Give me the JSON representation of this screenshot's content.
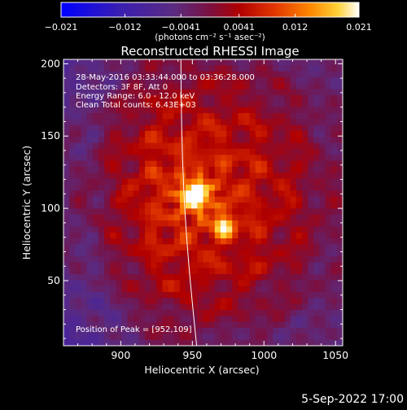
{
  "chart_data": {
    "type": "heatmap",
    "title": "Reconstructed RHESSI Image",
    "xlabel": "Heliocentric X (arcsec)",
    "ylabel": "Heliocentric Y (arcsec)",
    "xlim": [
      860,
      1055
    ],
    "ylim": [
      5,
      203
    ],
    "x_ticks": [
      900,
      950,
      1000,
      1050
    ],
    "y_ticks": [
      50,
      100,
      150,
      200
    ],
    "colorbar": {
      "range": [
        -0.021,
        0.021
      ],
      "tick_values": [
        -0.021,
        -0.012,
        -0.0041,
        0.0041,
        0.012,
        0.021
      ],
      "tick_labels": [
        "−0.021",
        "−0.012",
        "−0.0041",
        "0.0041",
        "0.012",
        "0.021"
      ],
      "unit_label": "(photons cm⁻² s⁻¹ asec⁻²)"
    },
    "peak": {
      "x": 952,
      "y": 109,
      "value": 0.021
    },
    "secondary_source": {
      "x": 972,
      "y": 88,
      "value": 0.014
    },
    "solar_limb": {
      "x_at_top": 942,
      "x_at_bottom": 953
    },
    "annotations": [
      "28-May-2016 03:33:44.000 to 03:36:28.000",
      "Detectors: 3F 8F, Att 0",
      "Energy Range: 6.0 - 12.0 keV",
      "Clean     Total counts: 6.43E+03",
      "Position of Peak = [952,109]"
    ]
  },
  "footer": {
    "timestamp": "5-Sep-2022 17:00"
  }
}
